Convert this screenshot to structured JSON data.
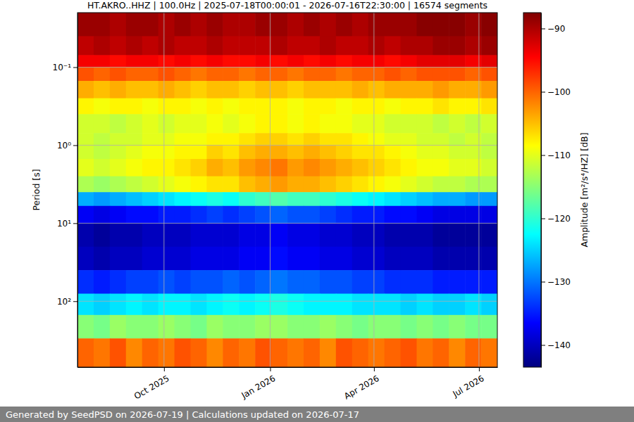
{
  "chart_data": {
    "type": "heatmap",
    "title": "HT.AKRO..HHZ | 100.0Hz | 2025-07-18T00:00:01 - 2026-07-16T22:30:00 | 16574 segments",
    "y_label": "Period [s]",
    "footer": "Generated by SeedPSD on 2026-07-19 | Calculations updated on 2026-07-17",
    "log": "y",
    "grid": true,
    "xlim": [
      "2025-07-18T00:00:01",
      "2026-07-16T22:30:00"
    ],
    "ylim": [
      0.02,
      700
    ],
    "xticks": [
      {
        "value": "2025-10-01",
        "label": "Oct 2025"
      },
      {
        "value": "2026-01-01",
        "label": "Jan 2026"
      },
      {
        "value": "2026-04-01",
        "label": "Apr 2026"
      },
      {
        "value": "2026-07-01",
        "label": "Jul 2026"
      }
    ],
    "yticks": [
      {
        "value": 0.1,
        "label": "10⁻¹"
      },
      {
        "value": 1,
        "label": "10⁰"
      },
      {
        "value": 10,
        "label": "10¹"
      },
      {
        "value": 100,
        "label": "10²"
      }
    ],
    "x": [
      "2025-07-18",
      "2025-08-01",
      "2025-08-15",
      "2025-08-29",
      "2025-09-12",
      "2025-09-26",
      "2025-10-10",
      "2025-10-24",
      "2025-11-07",
      "2025-11-21",
      "2025-12-05",
      "2025-12-19",
      "2026-01-02",
      "2026-01-16",
      "2026-01-30",
      "2026-02-13",
      "2026-02-27",
      "2026-03-13",
      "2026-03-27",
      "2026-04-10",
      "2026-04-24",
      "2026-05-08",
      "2026-05-22",
      "2026-06-05",
      "2026-06-19",
      "2026-07-03"
    ],
    "y_bins": [
      0.02,
      0.04,
      0.07,
      0.1,
      0.15,
      0.25,
      0.4,
      0.7,
      1,
      1.5,
      2.5,
      4,
      6,
      10,
      20,
      40,
      80,
      150,
      300,
      700
    ],
    "values": [
      [
        -89,
        -89,
        -90,
        -89,
        -89,
        -90,
        -89,
        -90,
        -89,
        -90,
        -90,
        -89,
        -89,
        -90,
        -89,
        -90,
        -89,
        -90,
        -89,
        -89,
        -89,
        -88,
        -88,
        -88,
        -89,
        -88
      ],
      [
        -91,
        -90,
        -91,
        -90,
        -91,
        -90,
        -91,
        -91,
        -90,
        -91,
        -91,
        -91,
        -90,
        -91,
        -91,
        -90,
        -91,
        -91,
        -90,
        -91,
        -90,
        -90,
        -89,
        -89,
        -90,
        -89
      ],
      [
        -94,
        -94,
        -95,
        -94,
        -94,
        -95,
        -94,
        -95,
        -94,
        -95,
        -95,
        -94,
        -95,
        -94,
        -95,
        -94,
        -95,
        -94,
        -94,
        -95,
        -94,
        -93,
        -93,
        -93,
        -94,
        -93
      ],
      [
        -99,
        -100,
        -99,
        -100,
        -100,
        -99,
        -100,
        -101,
        -100,
        -100,
        -101,
        -100,
        -100,
        -101,
        -100,
        -100,
        -101,
        -100,
        -100,
        -99,
        -100,
        -99,
        -99,
        -99,
        -100,
        -99
      ],
      [
        -104,
        -105,
        -104,
        -105,
        -105,
        -104,
        -105,
        -106,
        -105,
        -105,
        -106,
        -105,
        -105,
        -106,
        -105,
        -105,
        -105,
        -104,
        -105,
        -104,
        -104,
        -104,
        -103,
        -104,
        -104,
        -103
      ],
      [
        -108,
        -109,
        -108,
        -108,
        -109,
        -108,
        -108,
        -109,
        -108,
        -109,
        -108,
        -108,
        -108,
        -109,
        -108,
        -108,
        -109,
        -108,
        -108,
        -109,
        -108,
        -108,
        -107,
        -108,
        -108,
        -107
      ],
      [
        -111,
        -111,
        -112,
        -111,
        -110,
        -111,
        -110,
        -110,
        -109,
        -110,
        -109,
        -108,
        -108,
        -109,
        -108,
        -109,
        -109,
        -110,
        -110,
        -111,
        -111,
        -111,
        -112,
        -111,
        -112,
        -111
      ],
      [
        -111,
        -112,
        -111,
        -111,
        -110,
        -110,
        -109,
        -109,
        -108,
        -108,
        -107,
        -106,
        -106,
        -107,
        -106,
        -107,
        -107,
        -108,
        -109,
        -110,
        -110,
        -111,
        -111,
        -112,
        -111,
        -112
      ],
      [
        -111,
        -112,
        -111,
        -110,
        -109,
        -109,
        -108,
        -108,
        -106,
        -107,
        -105,
        -104,
        -104,
        -105,
        -104,
        -105,
        -106,
        -107,
        -107,
        -108,
        -109,
        -110,
        -110,
        -111,
        -111,
        -112
      ],
      [
        -110,
        -111,
        -110,
        -109,
        -108,
        -108,
        -107,
        -106,
        -104,
        -105,
        -103,
        -102,
        -101,
        -103,
        -102,
        -103,
        -104,
        -105,
        -106,
        -107,
        -108,
        -109,
        -109,
        -110,
        -110,
        -111
      ],
      [
        -113,
        -114,
        -113,
        -112,
        -111,
        -110,
        -109,
        -108,
        -107,
        -107,
        -105,
        -104,
        -103,
        -104,
        -104,
        -105,
        -106,
        -107,
        -108,
        -109,
        -110,
        -111,
        -112,
        -112,
        -113,
        -113
      ],
      [
        -127,
        -128,
        -127,
        -126,
        -125,
        -124,
        -123,
        -122,
        -121,
        -122,
        -120,
        -119,
        -118,
        -119,
        -119,
        -120,
        -121,
        -122,
        -123,
        -124,
        -125,
        -126,
        -127,
        -127,
        -128,
        -128
      ],
      [
        -137,
        -138,
        -137,
        -136,
        -136,
        -135,
        -135,
        -134,
        -133,
        -134,
        -133,
        -132,
        -131,
        -132,
        -132,
        -133,
        -134,
        -135,
        -135,
        -136,
        -136,
        -137,
        -138,
        -138,
        -138,
        -138
      ],
      [
        -141,
        -142,
        -141,
        -141,
        -140,
        -140,
        -140,
        -139,
        -139,
        -139,
        -138,
        -138,
        -137,
        -138,
        -138,
        -139,
        -139,
        -140,
        -140,
        -141,
        -141,
        -141,
        -142,
        -142,
        -142,
        -142
      ],
      [
        -140,
        -141,
        -140,
        -140,
        -139,
        -139,
        -139,
        -138,
        -138,
        -138,
        -137,
        -137,
        -136,
        -137,
        -137,
        -138,
        -138,
        -139,
        -139,
        -140,
        -140,
        -140,
        -141,
        -141,
        -141,
        -141
      ],
      [
        -134,
        -135,
        -134,
        -133,
        -133,
        -132,
        -133,
        -132,
        -132,
        -131,
        -132,
        -131,
        -130,
        -131,
        -131,
        -132,
        -132,
        -133,
        -133,
        -134,
        -134,
        -134,
        -135,
        -135,
        -135,
        -135
      ],
      [
        -124,
        -125,
        -124,
        -123,
        -124,
        -123,
        -123,
        -124,
        -123,
        -122,
        -123,
        -122,
        -121,
        -122,
        -123,
        -123,
        -123,
        -124,
        -124,
        -124,
        -125,
        -124,
        -125,
        -125,
        -124,
        -125
      ],
      [
        -115,
        -116,
        -114,
        -115,
        -115,
        -114,
        -115,
        -116,
        -114,
        -115,
        -115,
        -114,
        -114,
        -115,
        -115,
        -114,
        -115,
        -116,
        -115,
        -115,
        -116,
        -115,
        -116,
        -115,
        -116,
        -116
      ],
      [
        -100,
        -101,
        -99,
        -102,
        -100,
        -101,
        -99,
        -100,
        -102,
        -100,
        -101,
        -99,
        -100,
        -101,
        -100,
        -102,
        -99,
        -100,
        -101,
        -100,
        -99,
        -101,
        -100,
        -102,
        -100,
        -101
      ]
    ],
    "colorbar": {
      "label": "Amplitude [m²/s⁴/HZ] [dB]",
      "range": [
        -143.5,
        -87.5
      ],
      "ticks": [
        {
          "value": -90,
          "label": "−90"
        },
        {
          "value": -100,
          "label": "−100"
        },
        {
          "value": -110,
          "label": "−110"
        },
        {
          "value": -120,
          "label": "−120"
        },
        {
          "value": -130,
          "label": "−130"
        },
        {
          "value": -140,
          "label": "−140"
        }
      ]
    }
  }
}
